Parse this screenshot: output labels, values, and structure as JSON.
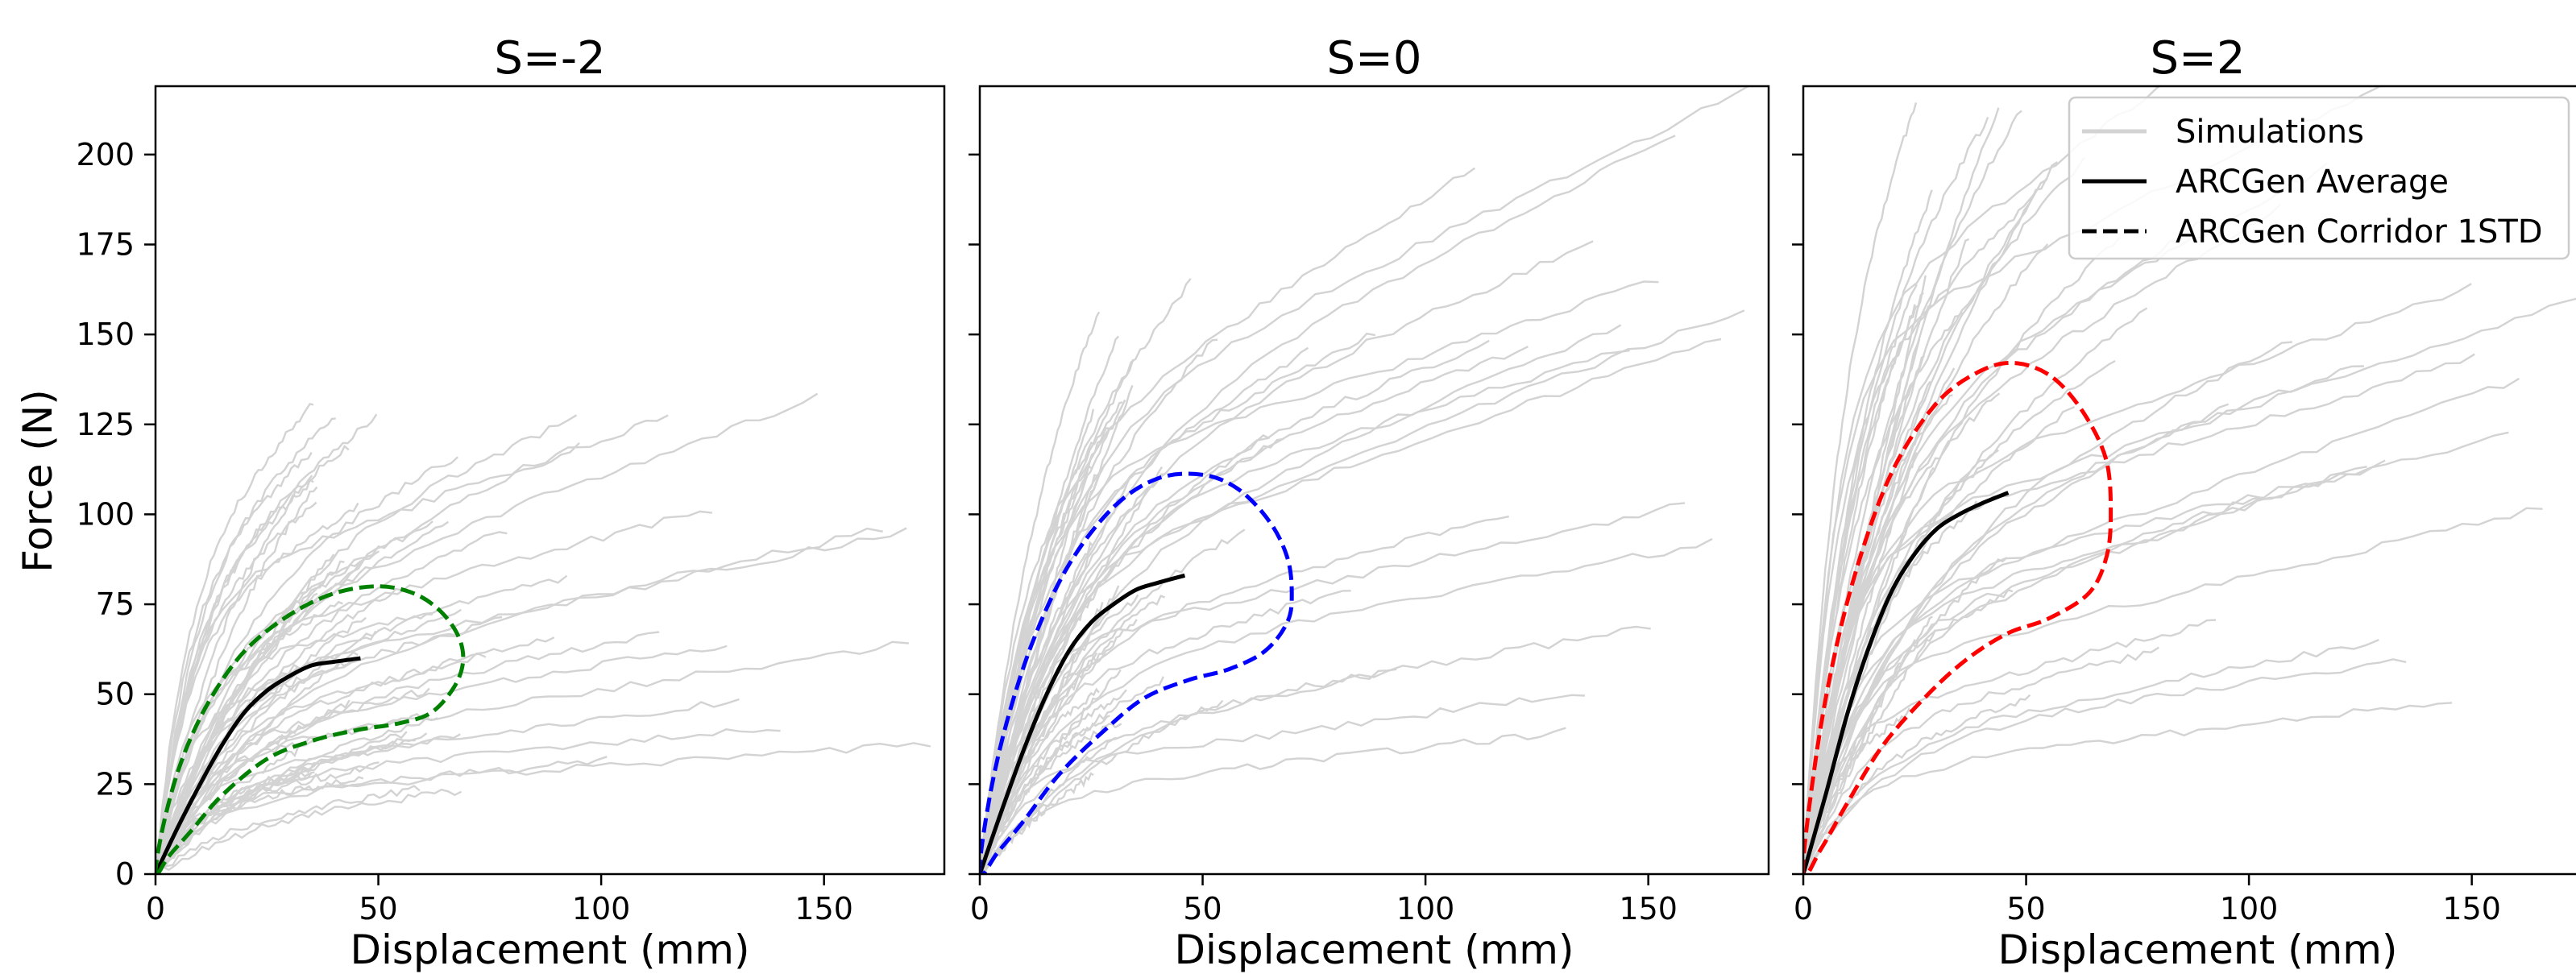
{
  "chart_data": {
    "type": "line",
    "shared": {
      "xlabel": "Displacement (mm)",
      "ylabel": "Force (N)",
      "xlim": [
        0,
        177
      ],
      "ylim": [
        0,
        219
      ],
      "xticks": [
        0,
        50,
        100,
        150
      ],
      "yticks": [
        0,
        25,
        50,
        75,
        100,
        125,
        150,
        175,
        200
      ],
      "grid": false,
      "colors": {
        "simulations": "#d3d3d3",
        "average": "#000000"
      }
    },
    "legend": {
      "placement": "top-right of third panel",
      "entries": [
        {
          "label": "Simulations",
          "color": "#d3d3d3",
          "style": "solid"
        },
        {
          "label": "ARCGen Average",
          "color": "#000000",
          "style": "solid"
        },
        {
          "label": "ARCGen Corridor 1STD",
          "color": "#000000",
          "style": "dashed"
        }
      ]
    },
    "panels": [
      {
        "title": "S=-2",
        "corridor_color": "#008000",
        "simulation_envelope": {
          "count": 60,
          "end_displacement_range": [
            35,
            175
          ],
          "peak_force_range": [
            20,
            120
          ]
        },
        "series": [
          {
            "name": "ARCGen Average",
            "x": [
              0,
              5,
              10,
              15,
              20,
              25,
              30,
              35,
              40,
              46
            ],
            "y": [
              0,
              13,
              25,
              36,
              45,
              51,
              55,
              58,
              59,
              60
            ]
          },
          {
            "name": "ARCGen Corridor 1STD",
            "x": [
              0,
              2,
              6,
              12,
              20,
              30,
              40,
              50,
              58,
              64,
              68,
              69,
              67,
              62,
              55,
              45,
              35,
              25,
              15,
              8,
              3,
              0
            ],
            "y": [
              0,
              15,
              32,
              48,
              62,
              72,
              78,
              80,
              78,
              73,
              66,
              59,
              52,
              45,
              42,
              40,
              37,
              32,
              22,
              12,
              5,
              0
            ]
          }
        ]
      },
      {
        "title": "S=0",
        "corridor_color": "#0000ff",
        "simulation_envelope": {
          "count": 60,
          "end_displacement_range": [
            25,
            175
          ],
          "peak_force_range": [
            30,
            168
          ]
        },
        "series": [
          {
            "name": "ARCGen Average",
            "x": [
              0,
              5,
              10,
              15,
              20,
              25,
              30,
              35,
              40,
              46
            ],
            "y": [
              0,
              18,
              35,
              50,
              62,
              70,
              75,
              79,
              81,
              83
            ]
          },
          {
            "name": "ARCGen Corridor 1STD",
            "x": [
              0,
              2,
              6,
              12,
              20,
              30,
              40,
              50,
              58,
              65,
              69,
              70,
              69,
              64,
              56,
              47,
              37,
              28,
              18,
              10,
              4,
              0
            ],
            "y": [
              0,
              20,
              42,
              65,
              86,
              102,
              110,
              111,
              107,
              98,
              88,
              78,
              70,
              62,
              57,
              54,
              49,
              40,
              28,
              15,
              6,
              0
            ]
          }
        ]
      },
      {
        "title": "S=2",
        "corridor_color": "#ff0000",
        "simulation_envelope": {
          "count": 60,
          "end_displacement_range": [
            25,
            177
          ],
          "peak_force_range": [
            35,
            216
          ]
        },
        "series": [
          {
            "name": "ARCGen Average",
            "x": [
              0,
              5,
              10,
              15,
              20,
              25,
              30,
              35,
              40,
              46
            ],
            "y": [
              0,
              22,
              45,
              64,
              79,
              89,
              96,
              100,
              103,
              106
            ]
          },
          {
            "name": "ARCGen Corridor 1STD",
            "x": [
              0,
              2,
              6,
              12,
              20,
              30,
              40,
              48,
              56,
              63,
              68,
              69,
              68,
              64,
              55,
              46,
              37,
              28,
              18,
              10,
              4,
              0
            ],
            "y": [
              0,
              25,
              55,
              85,
              112,
              131,
              140,
              142,
              138,
              128,
              115,
              100,
              88,
              78,
              71,
              67,
              60,
              50,
              36,
              20,
              7,
              0
            ]
          }
        ]
      }
    ]
  }
}
